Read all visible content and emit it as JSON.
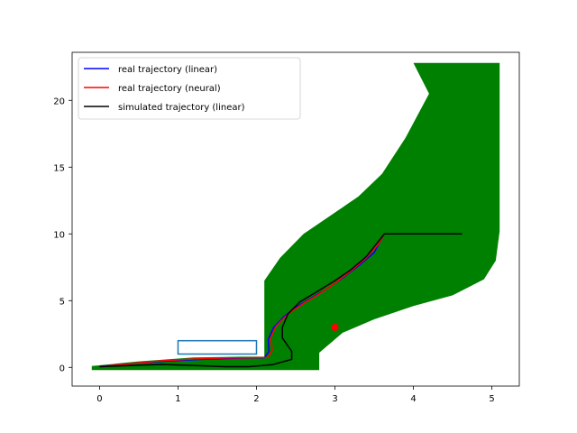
{
  "chart_data": {
    "type": "line",
    "title": "",
    "xlabel": "",
    "ylabel": "",
    "xlim": [
      -0.35,
      5.35
    ],
    "ylim": [
      -1.4,
      23.6
    ],
    "xticks": [
      0,
      1,
      2,
      3,
      4,
      5
    ],
    "yticks": [
      0,
      5,
      10,
      15,
      20
    ],
    "grid": false,
    "legend_placement": "upper-left",
    "colors": {
      "linear": "#0000ff",
      "neural": "#ff0000",
      "simulated": "#000000",
      "reachable_set": "#008000",
      "obstacle": "#1f77b4",
      "target": "#ff0000"
    },
    "series": [
      {
        "name": "real trajectory (linear)",
        "color": "#0000ff",
        "points": [
          [
            0,
            0.08
          ],
          [
            0.4,
            0.28
          ],
          [
            0.8,
            0.45
          ],
          [
            1.2,
            0.58
          ],
          [
            1.6,
            0.66
          ],
          [
            1.9,
            0.7
          ],
          [
            2.1,
            0.72
          ],
          [
            2.16,
            1.2
          ],
          [
            2.15,
            2.1
          ],
          [
            2.22,
            3.0
          ],
          [
            2.35,
            3.8
          ],
          [
            2.5,
            4.5
          ],
          [
            2.7,
            5.2
          ],
          [
            2.9,
            5.9
          ],
          [
            3.1,
            6.7
          ],
          [
            3.3,
            7.6
          ],
          [
            3.5,
            8.6
          ],
          [
            3.63,
            10
          ],
          [
            4.62,
            10
          ]
        ]
      },
      {
        "name": "real trajectory (neural)",
        "color": "#ff0000",
        "points": [
          [
            0,
            0.05
          ],
          [
            0.4,
            0.28
          ],
          [
            0.8,
            0.5
          ],
          [
            1.2,
            0.63
          ],
          [
            1.6,
            0.7
          ],
          [
            1.9,
            0.72
          ],
          [
            2.15,
            0.75
          ],
          [
            2.2,
            1.3
          ],
          [
            2.18,
            2.2
          ],
          [
            2.25,
            3.1
          ],
          [
            2.4,
            4.0
          ],
          [
            2.6,
            4.8
          ],
          [
            2.8,
            5.5
          ],
          [
            3.0,
            6.3
          ],
          [
            3.2,
            7.2
          ],
          [
            3.4,
            8.2
          ],
          [
            3.55,
            9.2
          ],
          [
            3.63,
            10
          ],
          [
            4.62,
            10
          ]
        ]
      },
      {
        "name": "simulated trajectory (linear)",
        "color": "#000000",
        "points": [
          [
            0,
            0.05
          ],
          [
            0.4,
            0.15
          ],
          [
            0.8,
            0.22
          ],
          [
            1.2,
            0.15
          ],
          [
            1.6,
            0.05
          ],
          [
            1.9,
            0.05
          ],
          [
            2.2,
            0.2
          ],
          [
            2.45,
            0.6
          ],
          [
            2.45,
            1.2
          ],
          [
            2.33,
            2.2
          ],
          [
            2.33,
            3.0
          ],
          [
            2.4,
            4.0
          ],
          [
            2.55,
            4.9
          ],
          [
            2.75,
            5.6
          ],
          [
            3.0,
            6.5
          ],
          [
            3.2,
            7.3
          ],
          [
            3.4,
            8.3
          ],
          [
            3.63,
            10
          ],
          [
            4.62,
            10
          ]
        ]
      }
    ],
    "reachable_set": {
      "lower": [
        [
          -0.1,
          -0.2
        ],
        [
          2.8,
          -0.2
        ],
        [
          2.8,
          1.1
        ],
        [
          3.1,
          2.6
        ],
        [
          3.5,
          3.6
        ],
        [
          4.0,
          4.6
        ],
        [
          4.5,
          5.4
        ],
        [
          4.9,
          6.6
        ],
        [
          5.05,
          8.0
        ],
        [
          5.1,
          10.2
        ]
      ],
      "upper": [
        [
          -0.1,
          0.1
        ],
        [
          0.5,
          0.45
        ],
        [
          1.2,
          0.75
        ],
        [
          1.8,
          0.8
        ],
        [
          2.1,
          0.8
        ],
        [
          2.1,
          6.5
        ],
        [
          2.3,
          8.2
        ],
        [
          2.6,
          10.0
        ],
        [
          3.0,
          11.6
        ],
        [
          3.3,
          12.8
        ],
        [
          3.6,
          14.5
        ],
        [
          3.9,
          17.2
        ],
        [
          4.2,
          20.5
        ],
        [
          4.0,
          22.8
        ],
        [
          5.1,
          22.8
        ]
      ]
    },
    "obstacle": {
      "x": [
        1.0,
        2.0
      ],
      "y": [
        1.0,
        2.0
      ]
    },
    "target": {
      "x": 3.0,
      "y": 3.0
    }
  }
}
